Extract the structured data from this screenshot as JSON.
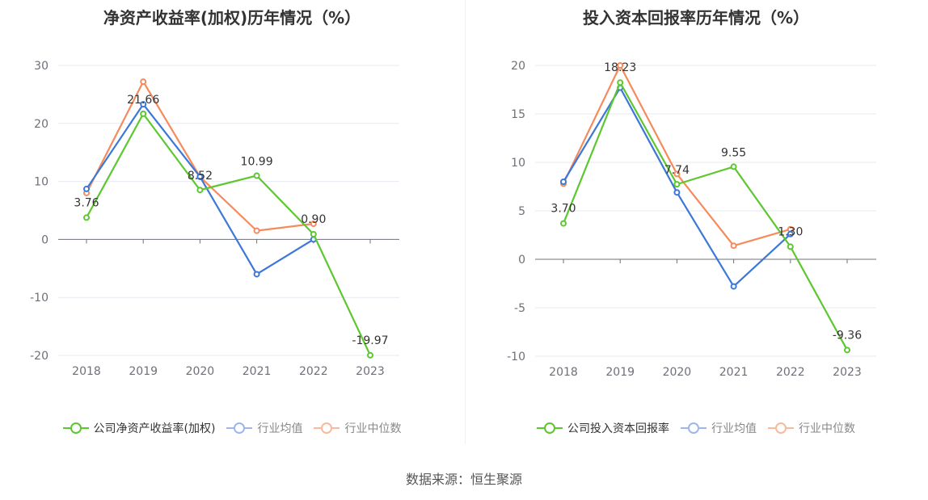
{
  "source_text": "数据来源：恒生聚源",
  "chart_data": [
    {
      "type": "line",
      "title": "净资产收益率(加权)历年情况（%）",
      "categories": [
        "2018",
        "2019",
        "2020",
        "2021",
        "2022",
        "2023"
      ],
      "ylim": [
        -20,
        30
      ],
      "yticks": [
        30,
        20,
        10,
        0,
        -10,
        -20
      ],
      "grid": true,
      "legend_position": "bottom",
      "series": [
        {
          "name": "公司净资产收益率(加权)",
          "color": "#5cc72e",
          "values": [
            3.76,
            21.66,
            8.52,
            10.99,
            0.9,
            -19.97
          ],
          "labels": [
            "3.76",
            "21.66",
            "8.52",
            "10.99",
            "0.90",
            "-19.97"
          ]
        },
        {
          "name": "行业均值",
          "color": "#3c78d8",
          "values": [
            8.7,
            23.3,
            10.8,
            -6.0,
            0.0,
            null
          ]
        },
        {
          "name": "行业中位数",
          "color": "#f58b5c",
          "values": [
            8.0,
            27.2,
            10.8,
            1.5,
            2.7,
            null
          ]
        }
      ]
    },
    {
      "type": "line",
      "title": "投入资本回报率历年情况（%）",
      "categories": [
        "2018",
        "2019",
        "2020",
        "2021",
        "2022",
        "2023"
      ],
      "ylim": [
        -10,
        20
      ],
      "yticks": [
        20,
        15,
        10,
        5,
        0,
        -5,
        -10
      ],
      "grid": true,
      "legend_position": "bottom",
      "series": [
        {
          "name": "公司投入资本回报率",
          "color": "#5cc72e",
          "values": [
            3.7,
            18.23,
            7.74,
            9.55,
            1.3,
            -9.36
          ],
          "labels": [
            "3.70",
            "18.23",
            "7.74",
            "9.55",
            "1.30",
            "-9.36"
          ]
        },
        {
          "name": "行业均值",
          "color": "#3c78d8",
          "values": [
            8.0,
            17.7,
            6.9,
            -2.8,
            2.6,
            null
          ]
        },
        {
          "name": "行业中位数",
          "color": "#f58b5c",
          "values": [
            7.8,
            20.0,
            8.8,
            1.4,
            3.1,
            null
          ]
        }
      ]
    }
  ]
}
